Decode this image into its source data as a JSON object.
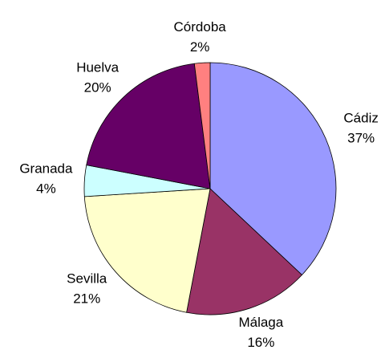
{
  "chart_data": {
    "type": "pie",
    "categories": [
      "Cádiz",
      "Málaga",
      "Sevilla",
      "Granada",
      "Huelva",
      "Córdoba"
    ],
    "values": [
      37,
      16,
      21,
      4,
      20,
      2
    ],
    "value_labels": [
      "37%",
      "16%",
      "21%",
      "4%",
      "20%",
      "2%"
    ],
    "colors": [
      "#9999ff",
      "#993366",
      "#ffffcc",
      "#ccffff",
      "#660066",
      "#ff8080"
    ]
  }
}
